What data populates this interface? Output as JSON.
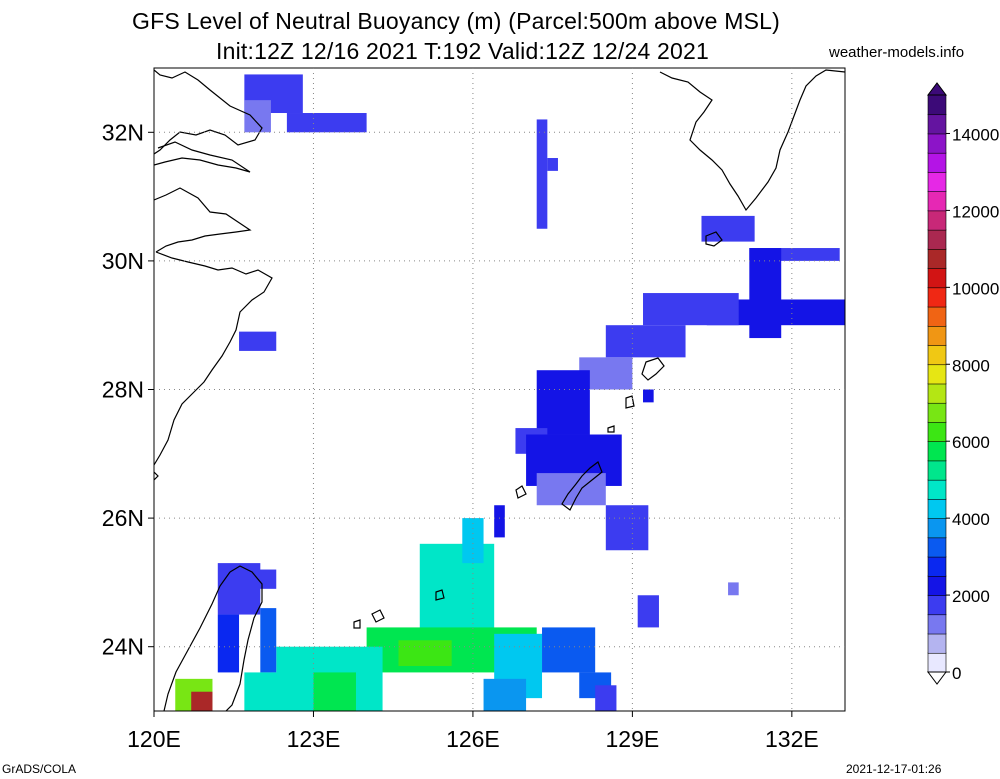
{
  "title_line1": "GFS Level of Neutral Buoyancy (m) (Parcel:500m above MSL)",
  "title_line2": "Init:12Z 12/16 2021 T:192 Valid:12Z 12/24 2021",
  "site": "weather-models.info",
  "footer_left": "GrADS/COLA",
  "footer_right": "2021-12-17-01:26",
  "map": {
    "lon_range": [
      120,
      133
    ],
    "lat_range": [
      23,
      33
    ],
    "x_ticks": [
      {
        "value": 120,
        "label": "120E"
      },
      {
        "value": 123,
        "label": "123E"
      },
      {
        "value": 126,
        "label": "126E"
      },
      {
        "value": 129,
        "label": "129E"
      },
      {
        "value": 132,
        "label": "132E"
      }
    ],
    "y_ticks": [
      {
        "value": 24,
        "label": "24N"
      },
      {
        "value": 26,
        "label": "26N"
      },
      {
        "value": 28,
        "label": "28N"
      },
      {
        "value": 30,
        "label": "30N"
      },
      {
        "value": 32,
        "label": "32N"
      }
    ],
    "grid": true
  },
  "colorbar": {
    "labels": [
      "0",
      "2000",
      "4000",
      "6000",
      "8000",
      "10000",
      "12000",
      "14000"
    ],
    "range": [
      0,
      15000
    ],
    "colors": [
      "#e8e8ff",
      "#b4b4f0",
      "#7878f0",
      "#3c3cf0",
      "#1414e6",
      "#0a28f0",
      "#0a5af0",
      "#0a96f0",
      "#00c8f0",
      "#00e6c8",
      "#00e68c",
      "#00e650",
      "#3ce614",
      "#78e614",
      "#b4e614",
      "#e6e614",
      "#f0c814",
      "#f09614",
      "#f06414",
      "#f02814",
      "#d21414",
      "#aa2828",
      "#aa2850",
      "#c82878",
      "#e628b4",
      "#e628e6",
      "#b414e6",
      "#8c14c8",
      "#6414a0",
      "#3c0a78"
    ]
  },
  "fields": [
    {
      "lon": [
        121.7,
        122.8
      ],
      "lat": [
        32.3,
        32.9
      ],
      "level": 1700
    },
    {
      "lon": [
        122.5,
        124.0
      ],
      "lat": [
        32.0,
        32.3
      ],
      "level": 1800
    },
    {
      "lon": [
        121.7,
        122.2
      ],
      "lat": [
        32.0,
        32.5
      ],
      "level": 1200
    },
    {
      "lon": [
        121.6,
        122.3
      ],
      "lat": [
        28.6,
        28.9
      ],
      "level": 1500
    },
    {
      "lon": [
        127.2,
        127.4
      ],
      "lat": [
        30.5,
        32.2
      ],
      "level": 1600
    },
    {
      "lon": [
        127.4,
        127.6
      ],
      "lat": [
        31.4,
        31.6
      ],
      "level": 1600
    },
    {
      "lon": [
        130.3,
        131.3
      ],
      "lat": [
        30.3,
        30.7
      ],
      "level": 1700
    },
    {
      "lon": [
        131.2,
        132.9
      ],
      "lat": [
        30.0,
        30.2
      ],
      "level": 1700
    },
    {
      "lon": [
        131.2,
        131.8
      ],
      "lat": [
        28.8,
        30.2
      ],
      "level": 2000
    },
    {
      "lon": [
        130.4,
        133.0
      ],
      "lat": [
        29.0,
        29.4
      ],
      "level": 2100
    },
    {
      "lon": [
        129.2,
        131.0
      ],
      "lat": [
        29.0,
        29.5
      ],
      "level": 1500
    },
    {
      "lon": [
        128.5,
        130.0
      ],
      "lat": [
        28.5,
        29.0
      ],
      "level": 1600
    },
    {
      "lon": [
        128.0,
        129.0
      ],
      "lat": [
        28.0,
        28.5
      ],
      "level": 1400
    },
    {
      "lon": [
        127.2,
        128.2
      ],
      "lat": [
        27.3,
        28.3
      ],
      "level": 2000
    },
    {
      "lon": [
        126.8,
        127.4
      ],
      "lat": [
        27.0,
        27.4
      ],
      "level": 1600
    },
    {
      "lon": [
        127.0,
        128.8
      ],
      "lat": [
        26.5,
        27.3
      ],
      "level": 2200
    },
    {
      "lon": [
        127.2,
        128.5
      ],
      "lat": [
        26.2,
        26.7
      ],
      "level": 1400
    },
    {
      "lon": [
        128.5,
        129.3
      ],
      "lat": [
        25.5,
        26.2
      ],
      "level": 1700
    },
    {
      "lon": [
        129.2,
        129.4
      ],
      "lat": [
        27.8,
        28.0
      ],
      "level": 2200
    },
    {
      "lon": [
        130.8,
        131.0
      ],
      "lat": [
        24.8,
        25.0
      ],
      "level": 1300
    },
    {
      "lon": [
        129.1,
        129.5
      ],
      "lat": [
        24.3,
        24.8
      ],
      "level": 1500
    },
    {
      "lon": [
        126.4,
        126.6
      ],
      "lat": [
        25.7,
        26.2
      ],
      "level": 2400
    },
    {
      "lon": [
        125.0,
        126.4
      ],
      "lat": [
        24.0,
        25.6
      ],
      "level": 4700
    },
    {
      "lon": [
        125.8,
        126.2
      ],
      "lat": [
        25.3,
        26.0
      ],
      "level": 4400
    },
    {
      "lon": [
        124.0,
        127.2
      ],
      "lat": [
        23.6,
        24.3
      ],
      "level": 5500
    },
    {
      "lon": [
        124.6,
        125.6
      ],
      "lat": [
        23.7,
        24.1
      ],
      "level": 6000
    },
    {
      "lon": [
        122.3,
        124.3
      ],
      "lat": [
        23.0,
        24.0
      ],
      "level": 4800
    },
    {
      "lon": [
        123.0,
        123.8
      ],
      "lat": [
        23.0,
        23.6
      ],
      "level": 5600
    },
    {
      "lon": [
        126.4,
        127.3
      ],
      "lat": [
        23.2,
        24.2
      ],
      "level": 4300
    },
    {
      "lon": [
        126.2,
        127.0
      ],
      "lat": [
        23.0,
        23.5
      ],
      "level": 3600
    },
    {
      "lon": [
        127.3,
        128.3
      ],
      "lat": [
        23.6,
        24.3
      ],
      "level": 3300
    },
    {
      "lon": [
        128.0,
        128.6
      ],
      "lat": [
        23.2,
        23.6
      ],
      "level": 3200
    },
    {
      "lon": [
        128.3,
        128.7
      ],
      "lat": [
        23.0,
        23.4
      ],
      "level": 1500
    },
    {
      "lon": [
        121.2,
        122.0
      ],
      "lat": [
        24.5,
        25.3
      ],
      "level": 1500
    },
    {
      "lon": [
        121.8,
        122.3
      ],
      "lat": [
        24.9,
        25.2
      ],
      "level": 1600
    },
    {
      "lon": [
        121.2,
        121.6
      ],
      "lat": [
        23.6,
        24.5
      ],
      "level": 2600
    },
    {
      "lon": [
        122.0,
        122.3
      ],
      "lat": [
        23.6,
        24.6
      ],
      "level": 3000
    },
    {
      "lon": [
        120.4,
        121.1
      ],
      "lat": [
        23.0,
        23.5
      ],
      "level": 6500
    },
    {
      "lon": [
        120.7,
        121.1
      ],
      "lat": [
        23.0,
        23.3
      ],
      "level": 10500
    },
    {
      "lon": [
        121.7,
        122.6
      ],
      "lat": [
        23.0,
        23.6
      ],
      "level": 4600
    }
  ]
}
